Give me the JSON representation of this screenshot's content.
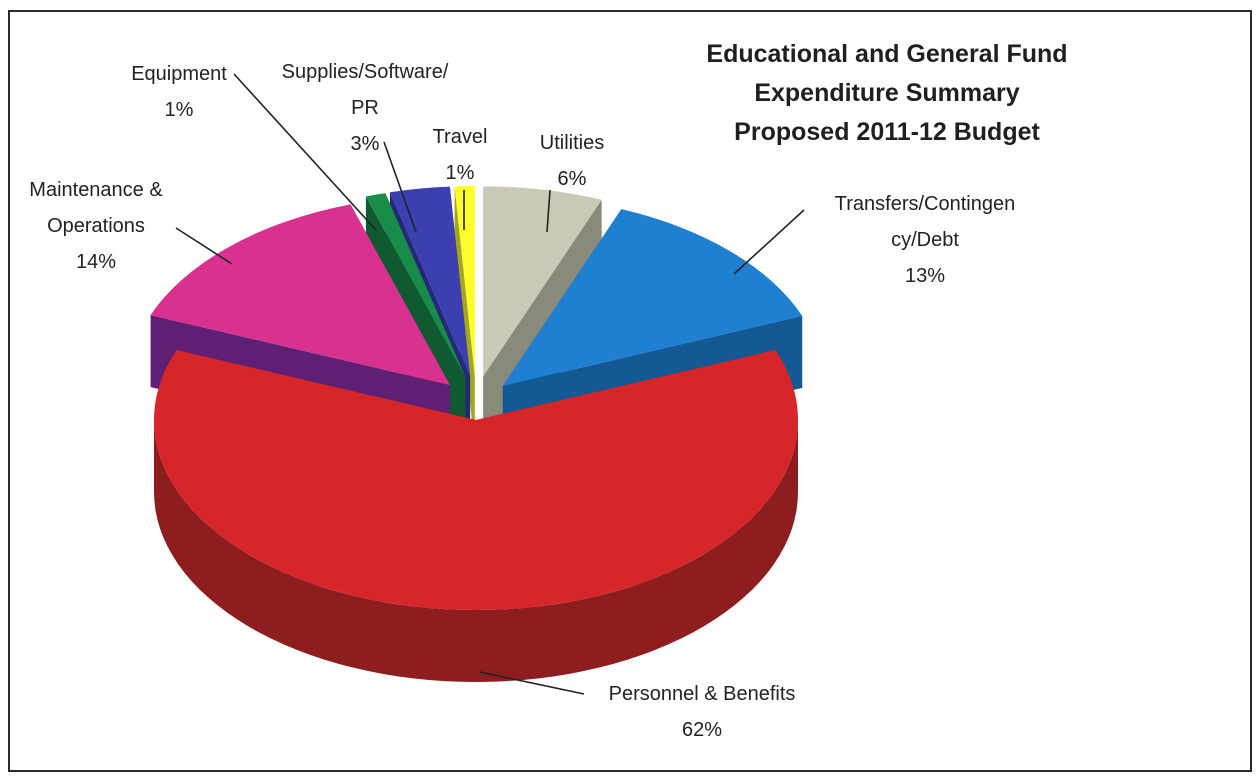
{
  "chart_data": {
    "type": "pie",
    "title": [
      "Educational and General Fund",
      "Expenditure Summary",
      "Proposed 2011-12 Budget"
    ],
    "slices": [
      {
        "name": "Personnel & Benefits",
        "label_lines": [
          "Personnel & Benefits",
          "62%"
        ],
        "value": 62,
        "color": "#d7262a",
        "side_color": "#8e1d1f"
      },
      {
        "name": "Maintenance & Operations",
        "label_lines": [
          "Maintenance &",
          "Operations",
          "14%"
        ],
        "value": 14,
        "color": "#d9318f",
        "side_color": "#5e1f74"
      },
      {
        "name": "Equipment",
        "label_lines": [
          "Equipment",
          "1%"
        ],
        "value": 1,
        "color": "#1a8c4a",
        "side_color": "#0f5a30"
      },
      {
        "name": "Supplies/Software/PR",
        "label_lines": [
          "Supplies/Software/",
          "PR",
          "3%"
        ],
        "value": 3,
        "color": "#3b3fb0",
        "side_color": "#24287a"
      },
      {
        "name": "Travel",
        "label_lines": [
          "Travel",
          "1%"
        ],
        "value": 1,
        "color": "#ffff2a",
        "side_color": "#a6a520"
      },
      {
        "name": "Utilities",
        "label_lines": [
          "Utilities",
          "6%"
        ],
        "value": 6,
        "color": "#c9c9b6",
        "side_color": "#8a8a7a"
      },
      {
        "name": "Transfers/Contingency/Debt",
        "label_lines": [
          "Transfers/Contingen",
          "cy/Debt",
          "13%"
        ],
        "value": 13,
        "color": "#1f7fd1",
        "side_color": "#135a95"
      }
    ],
    "style": "3d-exploded"
  }
}
